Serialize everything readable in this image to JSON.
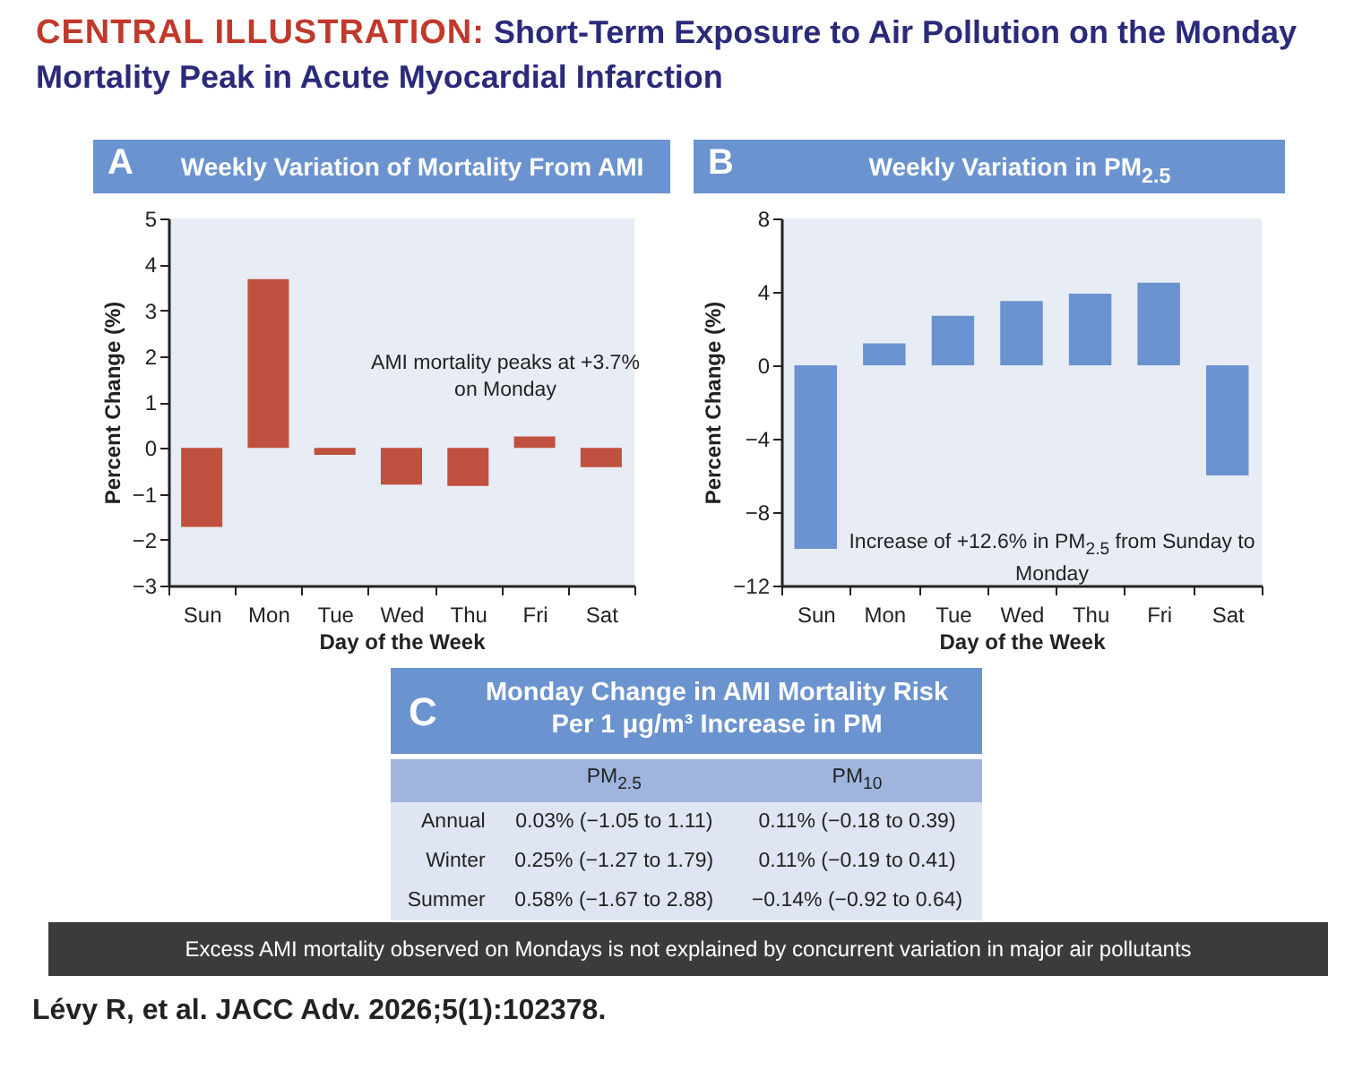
{
  "chart_data": [
    {
      "type": "bar",
      "title": "Weekly Variation of Mortality From AMI",
      "xlabel": "Day of the Week",
      "ylabel": "Percent Change (%)",
      "categories": [
        "Sun",
        "Mon",
        "Tue",
        "Wed",
        "Thu",
        "Fri",
        "Sat"
      ],
      "series": [
        {
          "color": "#c0503f",
          "values": [
            -1.72,
            3.68,
            -0.15,
            -0.8,
            -0.83,
            0.25,
            -0.42
          ]
        }
      ],
      "ylim": [
        -3,
        5
      ],
      "yticks": [
        -3,
        -2,
        -1,
        0,
        1,
        2,
        3,
        4,
        5
      ],
      "annotations": [
        "A",
        "AMI mortality peaks at +3.7% on Monday"
      ]
    },
    {
      "type": "bar",
      "title": "Weekly Variation in PM$_{2.5}$",
      "xlabel": "Day of the Week",
      "ylabel": "Percent Change (%)",
      "categories": [
        "Sun",
        "Mon",
        "Tue",
        "Wed",
        "Thu",
        "Fri",
        "Sat"
      ],
      "series": [
        {
          "color": "#6a93cf",
          "values": [
            -10,
            1.2,
            2.7,
            3.5,
            3.9,
            4.5,
            -6
          ]
        }
      ],
      "ylim": [
        -12,
        8
      ],
      "yticks": [
        -12,
        -8,
        -4,
        0,
        4,
        8
      ],
      "annotations": [
        "B",
        "Increase of +12.6% in PM$_{2.5}$ from Sunday to Monday"
      ]
    },
    {
      "type": "other",
      "title": "Monday Change in AMI Mortality Risk Per 1 μg/m³ Increase in PM",
      "categories": [
        "PM$_{2.5}$",
        "PM$_{10}$"
      ],
      "y_categories": [
        "Annual",
        "Winter",
        "Summer"
      ],
      "cell_labels": [
        [
          "0.03% (−1.05 to 1.11)",
          "0.11% (−0.18 to 0.39)"
        ],
        [
          "0.25% (−1.27 to 1.79)",
          "0.11% (−0.19 to 0.41)"
        ],
        [
          "0.58% (−1.67 to 2.88)",
          "−0.14% (−0.92 to 0.64)"
        ]
      ],
      "annotations": [
        "CENTRAL ILLUSTRATION:",
        "Short-Term Exposure to Air Pollution on the Monday Mortality Peak in Acute Myocardial Infarction",
        "C",
        "Excess AMI mortality observed on Mondays is not explained by concurrent variation in major air pollutants",
        "Lévy R, et al. JACC Adv. 2026;5(1):102378."
      ]
    }
  ]
}
